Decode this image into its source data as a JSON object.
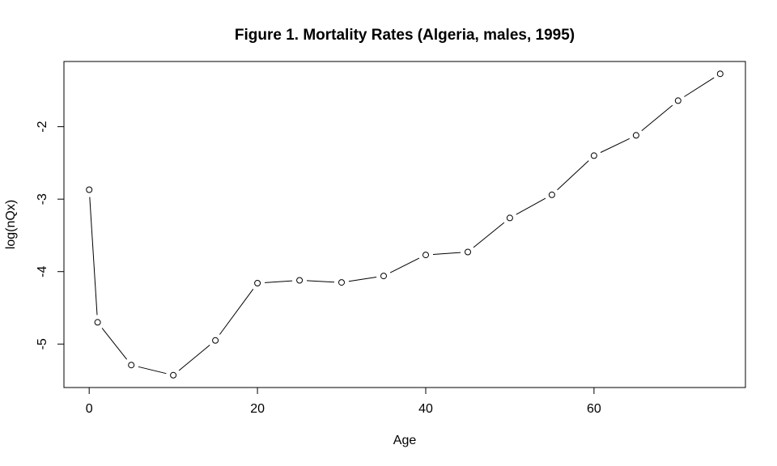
{
  "figure": {
    "background_color": "#ffffff",
    "foreground_color": "#000000"
  },
  "chart_data": {
    "type": "line",
    "title": "Figure 1. Mortality Rates (Algeria, males, 1995)",
    "xlabel": "Age",
    "ylabel": "log(nQx)",
    "x": [
      0,
      1,
      5,
      10,
      15,
      20,
      25,
      30,
      35,
      40,
      45,
      50,
      55,
      60,
      65,
      70,
      75
    ],
    "y": [
      -2.87,
      -4.7,
      -5.29,
      -5.43,
      -4.95,
      -4.16,
      -4.12,
      -4.15,
      -4.06,
      -3.77,
      -3.73,
      -3.26,
      -2.94,
      -2.4,
      -2.12,
      -1.64,
      -1.27
    ],
    "xticks": [
      0,
      20,
      40,
      60
    ],
    "yticks": [
      -5,
      -4,
      -3,
      -2
    ],
    "xtick_labels": [
      "0",
      "20",
      "40",
      "60"
    ],
    "ytick_labels": [
      "-5",
      "-4",
      "-3",
      "-2"
    ],
    "xlim": [
      -3,
      78
    ],
    "ylim": [
      -5.6,
      -1.1
    ],
    "marker": "open-circle",
    "line_color": "#000000",
    "marker_color": "#000000",
    "grid": false,
    "legend_position": "none"
  }
}
